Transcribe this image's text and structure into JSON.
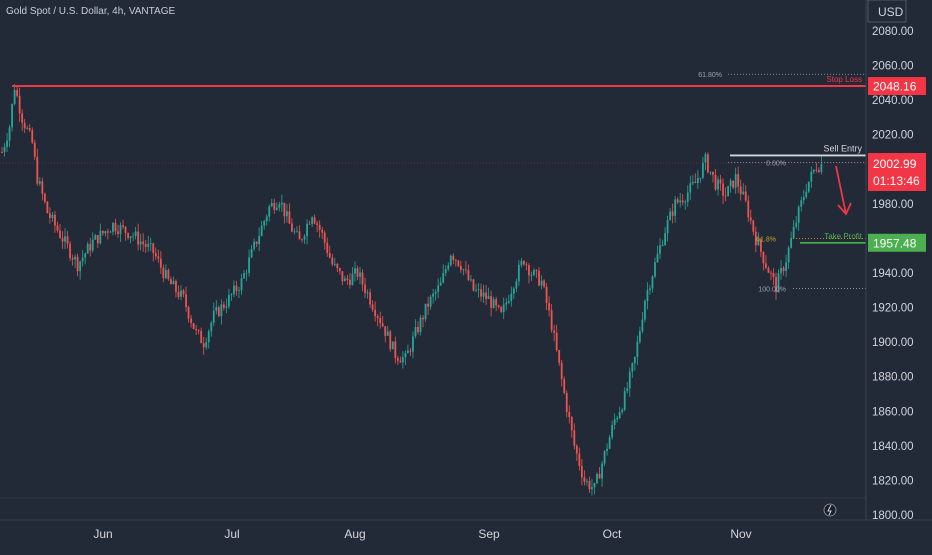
{
  "chart_data": {
    "type": "candlestick",
    "title": "Gold Spot / U.S. Dollar, 4h, VANTAGE",
    "currency": "USD",
    "y_ticks": [
      1800,
      1820,
      1840,
      1860,
      1880,
      1900,
      1920,
      1940,
      1960,
      1980,
      2000,
      2020,
      2040,
      2060,
      2080
    ],
    "y_tick_labels": [
      "1800.00",
      "1820.00",
      "1840.00",
      "1860.00",
      "1880.00",
      "1900.00",
      "1920.00",
      "1940.00",
      "1960.00",
      "1980.00",
      "2000.00",
      "2020.00",
      "2040.00",
      "2060.00",
      "2080.00"
    ],
    "x_months": [
      "Jun",
      "Jul",
      "Aug",
      "Sep",
      "Oct",
      "Nov"
    ],
    "ylim": [
      1800,
      2090
    ],
    "price_path": [
      [
        0,
        2010
      ],
      [
        3,
        2025
      ],
      [
        5,
        2048
      ],
      [
        8,
        2030
      ],
      [
        12,
        2015
      ],
      [
        14,
        1995
      ],
      [
        18,
        1975
      ],
      [
        24,
        1960
      ],
      [
        30,
        1945
      ],
      [
        36,
        1958
      ],
      [
        44,
        1968
      ],
      [
        52,
        1962
      ],
      [
        60,
        1952
      ],
      [
        66,
        1935
      ],
      [
        72,
        1925
      ],
      [
        77,
        1905
      ],
      [
        80,
        1900
      ],
      [
        84,
        1915
      ],
      [
        90,
        1925
      ],
      [
        95,
        1935
      ],
      [
        100,
        1955
      ],
      [
        106,
        1978
      ],
      [
        110,
        1983
      ],
      [
        114,
        1968
      ],
      [
        118,
        1958
      ],
      [
        123,
        1975
      ],
      [
        127,
        1962
      ],
      [
        131,
        1945
      ],
      [
        136,
        1935
      ],
      [
        141,
        1940
      ],
      [
        146,
        1925
      ],
      [
        151,
        1910
      ],
      [
        156,
        1893
      ],
      [
        160,
        1890
      ],
      [
        164,
        1905
      ],
      [
        169,
        1922
      ],
      [
        174,
        1933
      ],
      [
        178,
        1952
      ],
      [
        182,
        1945
      ],
      [
        187,
        1930
      ],
      [
        193,
        1925
      ],
      [
        198,
        1915
      ],
      [
        203,
        1935
      ],
      [
        207,
        1948
      ],
      [
        210,
        1940
      ],
      [
        214,
        1935
      ],
      [
        218,
        1910
      ],
      [
        223,
        1870
      ],
      [
        227,
        1840
      ],
      [
        231,
        1820
      ],
      [
        235,
        1815
      ],
      [
        239,
        1835
      ],
      [
        243,
        1855
      ],
      [
        247,
        1868
      ],
      [
        251,
        1890
      ],
      [
        255,
        1925
      ],
      [
        259,
        1945
      ],
      [
        263,
        1965
      ],
      [
        267,
        1980
      ],
      [
        271,
        1985
      ],
      [
        275,
        1992
      ],
      [
        279,
        2005
      ],
      [
        283,
        1992
      ],
      [
        287,
        1985
      ],
      [
        291,
        1995
      ],
      [
        295,
        1980
      ],
      [
        299,
        1960
      ],
      [
        303,
        1945
      ],
      [
        307,
        1932
      ],
      [
        311,
        1948
      ],
      [
        315,
        1970
      ],
      [
        319,
        1990
      ],
      [
        323,
        2002
      ],
      [
        326,
        2003
      ]
    ],
    "horizontal_lines": [
      {
        "label": "Stop Loss",
        "price": 2048.16,
        "price_label": "2048.16",
        "color": "#f23645"
      },
      {
        "label": "Sell Entry",
        "price": 2008,
        "color": "#d1d4dc"
      },
      {
        "label": "Take Profit",
        "price": 1957.48,
        "price_label": "1957.48",
        "color": "#4caf50"
      }
    ],
    "fib_levels": [
      {
        "label": "61.80%",
        "price": 2055
      },
      {
        "label": "0.00%",
        "price": 2004
      },
      {
        "label": "61.8%",
        "price": 1960
      },
      {
        "label": "100.00%",
        "price": 1931
      }
    ],
    "current_price": {
      "value": "2002.99",
      "countdown": "01:13:46"
    },
    "colors": {
      "bull": "#26a69a",
      "bear": "#ef5350",
      "background": "#232a37"
    }
  }
}
